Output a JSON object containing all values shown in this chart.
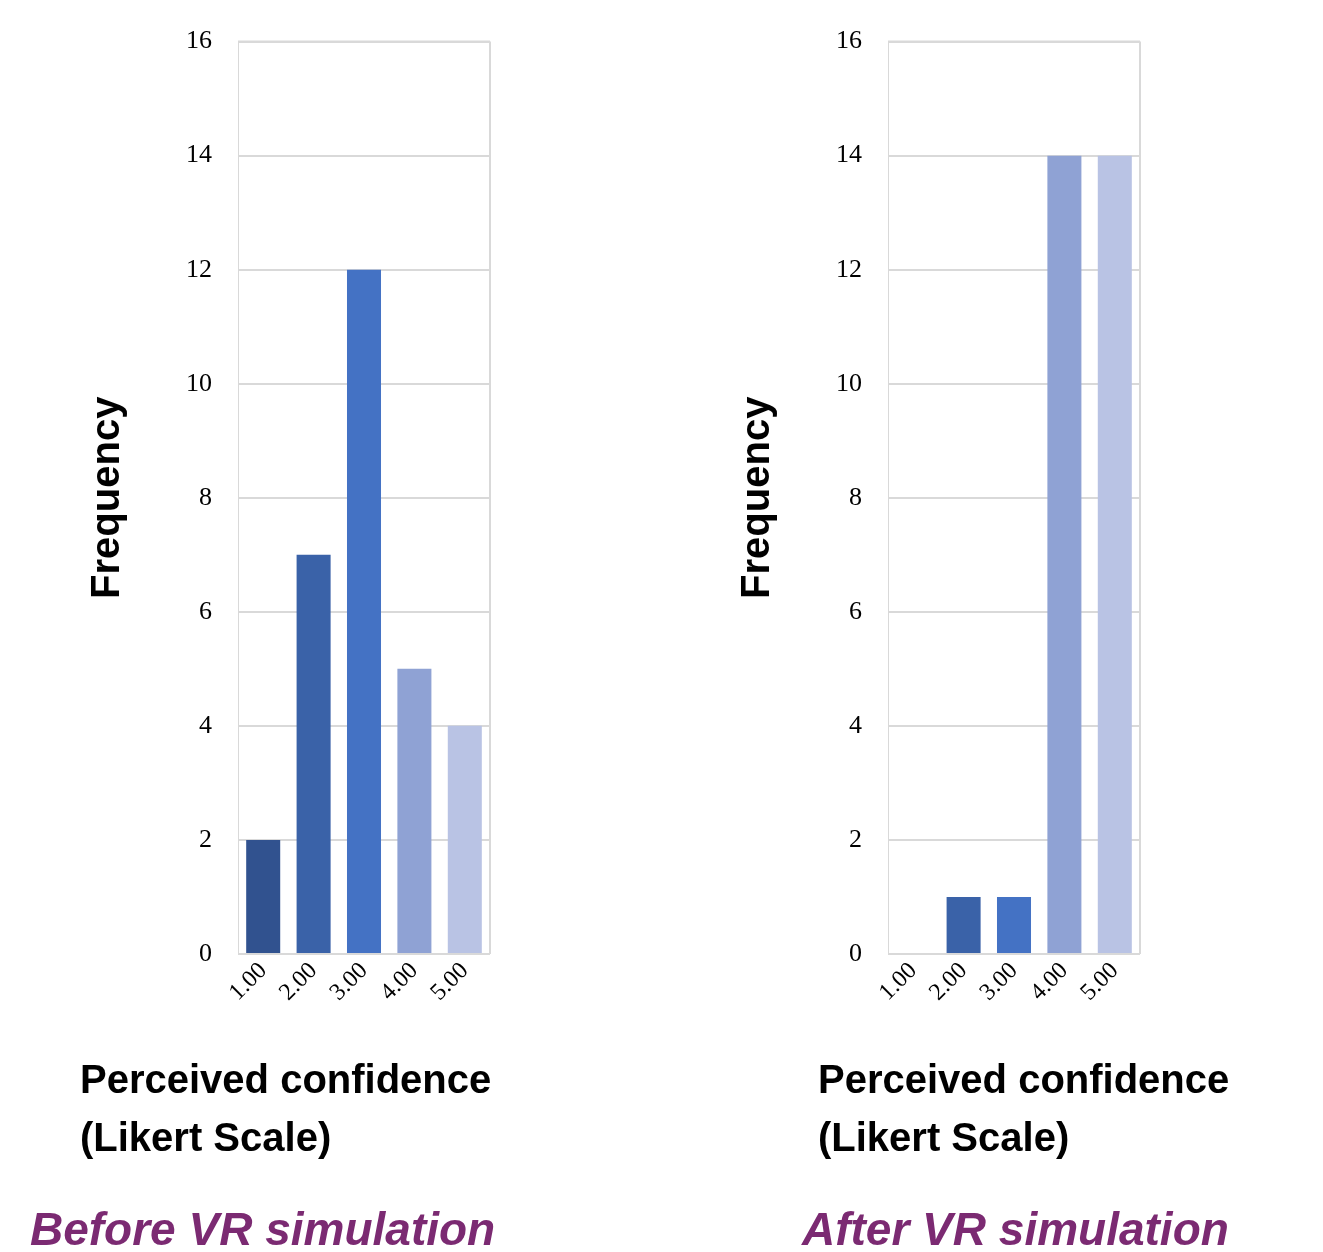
{
  "chart_data": [
    {
      "type": "bar",
      "title": "Before VR simulation",
      "xlabel": "Perceived confidence (Likert Scale)",
      "ylabel": "Frequency",
      "categories": [
        "1.00",
        "2.00",
        "3.00",
        "4.00",
        "5.00"
      ],
      "values": [
        2,
        7,
        12,
        5,
        4
      ],
      "colors": [
        "#31528f",
        "#3a62a8",
        "#4472c4",
        "#8fa2d4",
        "#b9c3e4"
      ],
      "ylim": [
        0,
        16
      ],
      "yticks": [
        0,
        2,
        4,
        6,
        8,
        10,
        12,
        14,
        16
      ],
      "grid": "y"
    },
    {
      "type": "bar",
      "title": "After VR simulation",
      "xlabel": "Perceived confidence (Likert Scale)",
      "ylabel": "Frequency",
      "categories": [
        "1.00",
        "2.00",
        "3.00",
        "4.00",
        "5.00"
      ],
      "values": [
        0,
        1,
        1,
        14,
        14
      ],
      "colors": [
        "#31528f",
        "#3a62a8",
        "#4472c4",
        "#8fa2d4",
        "#b9c3e4"
      ],
      "ylim": [
        0,
        16
      ],
      "yticks": [
        0,
        2,
        4,
        6,
        8,
        10,
        12,
        14,
        16
      ],
      "grid": "y"
    }
  ]
}
